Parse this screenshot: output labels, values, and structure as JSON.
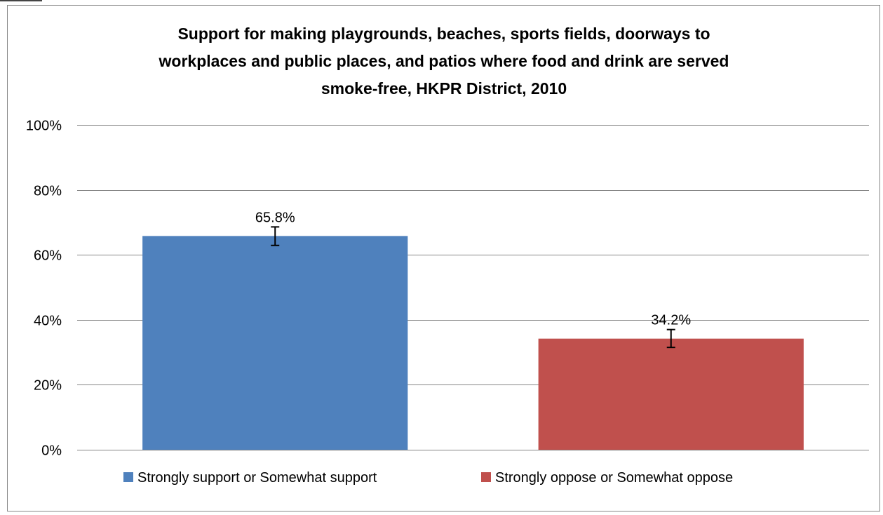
{
  "chart_data": {
    "type": "bar",
    "title_lines": [
      "Support for making playgrounds, beaches, sports fields, doorways to",
      "workplaces and public places, and patios where food and drink are served",
      "smoke-free, HKPR District, 2010"
    ],
    "xlabel": "",
    "ylabel": "",
    "ylim": [
      0,
      100
    ],
    "y_ticks": [
      0,
      20,
      40,
      60,
      80,
      100
    ],
    "y_tick_labels": [
      "0%",
      "20%",
      "40%",
      "60%",
      "80%",
      "100%"
    ],
    "grid": true,
    "legend_position": "bottom",
    "series": [
      {
        "name": "Strongly support or Somewhat support",
        "value": 65.8,
        "label": "65.8%",
        "error": [
          62.9,
          68.6
        ],
        "color": "#4F81BD"
      },
      {
        "name": "Strongly oppose or Somewhat oppose",
        "value": 34.2,
        "label": "34.2%",
        "error": [
          31.5,
          37.0
        ],
        "color": "#C0504D"
      }
    ]
  }
}
